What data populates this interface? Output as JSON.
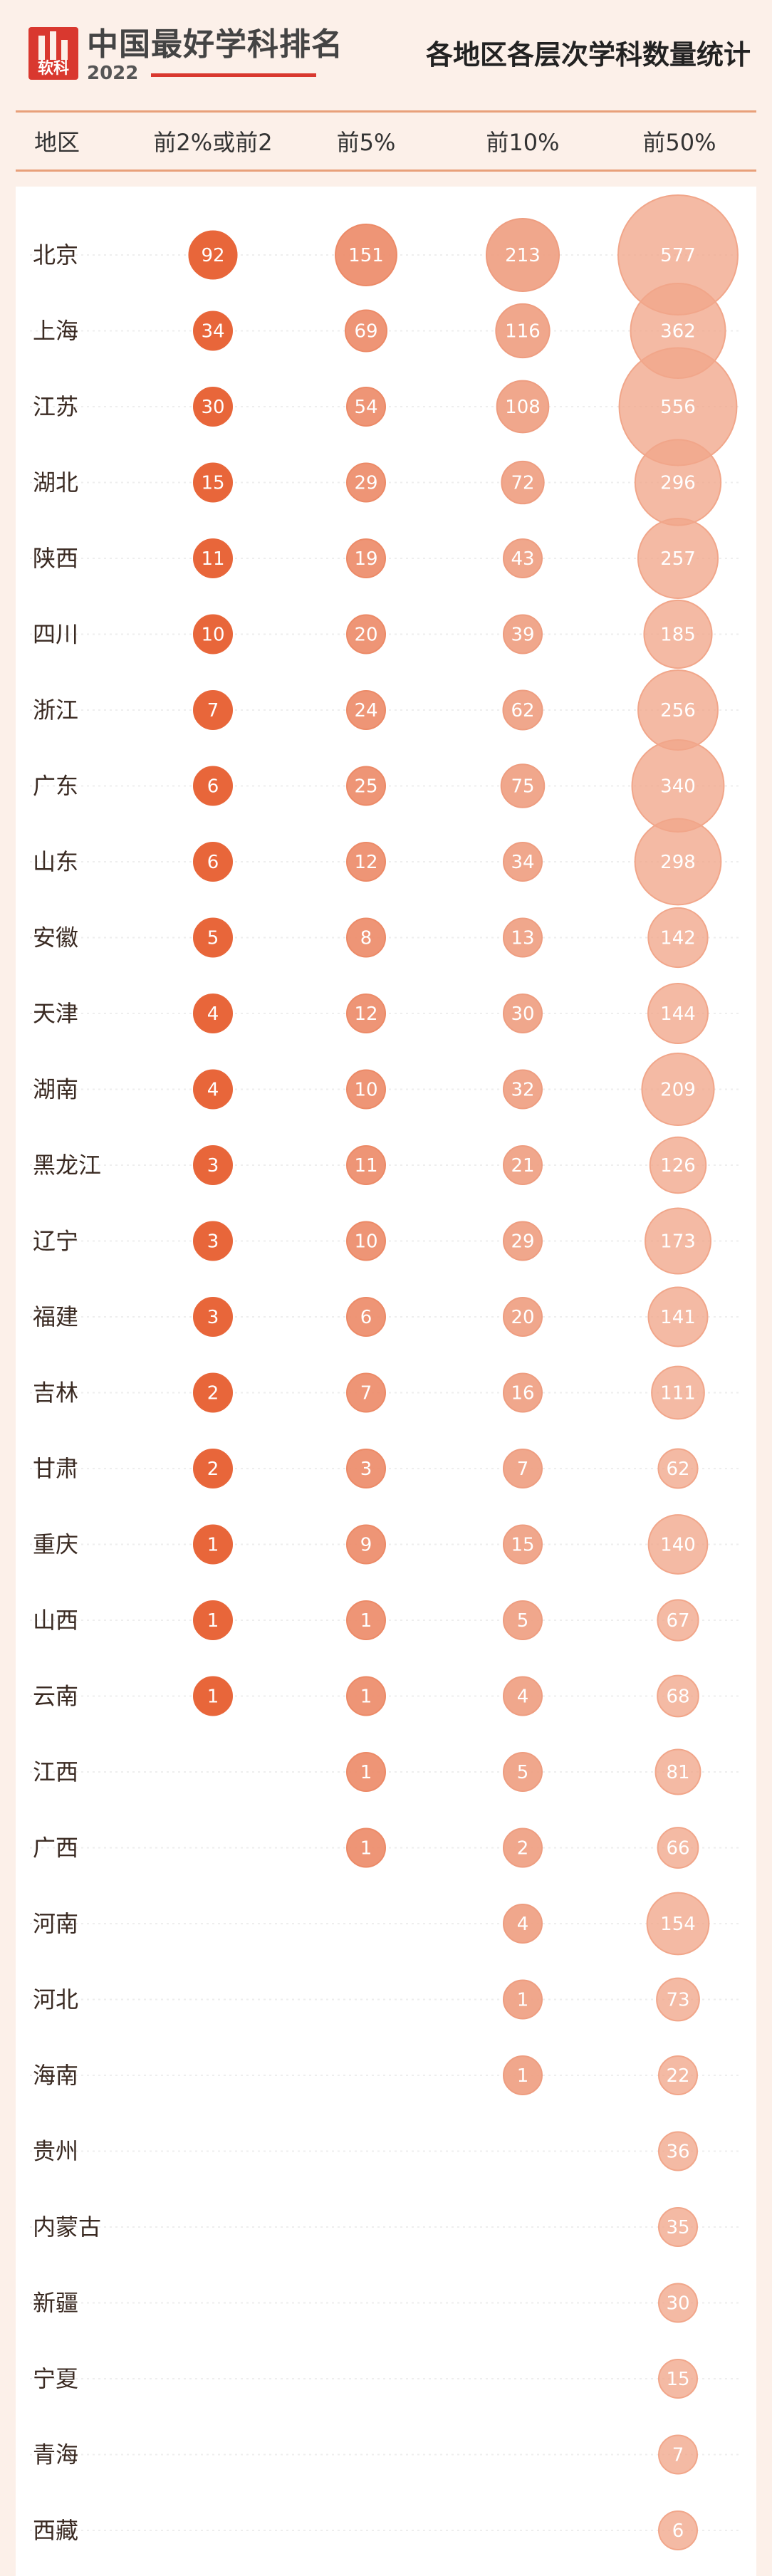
{
  "brand": {
    "title": "中国最好学科排名",
    "year": "2022",
    "logo_text": "软科"
  },
  "page_title": "各地区各层次学科数量统计",
  "chart_data": {
    "type": "bubble-table",
    "columns": [
      "地区",
      "前2%或前2",
      "前5%",
      "前10%",
      "前50%"
    ],
    "series_colors": [
      "#e8663a",
      "#ec8a67",
      "#ee9d80",
      "#f1a68a"
    ],
    "rows": [
      {
        "region": "北京",
        "values": [
          92,
          151,
          213,
          577
        ]
      },
      {
        "region": "上海",
        "values": [
          34,
          69,
          116,
          362
        ]
      },
      {
        "region": "江苏",
        "values": [
          30,
          54,
          108,
          556
        ]
      },
      {
        "region": "湖北",
        "values": [
          15,
          29,
          72,
          296
        ]
      },
      {
        "region": "陕西",
        "values": [
          11,
          19,
          43,
          257
        ]
      },
      {
        "region": "四川",
        "values": [
          10,
          20,
          39,
          185
        ]
      },
      {
        "region": "浙江",
        "values": [
          7,
          24,
          62,
          256
        ]
      },
      {
        "region": "广东",
        "values": [
          6,
          25,
          75,
          340
        ]
      },
      {
        "region": "山东",
        "values": [
          6,
          12,
          34,
          298
        ]
      },
      {
        "region": "安徽",
        "values": [
          5,
          8,
          13,
          142
        ]
      },
      {
        "region": "天津",
        "values": [
          4,
          12,
          30,
          144
        ]
      },
      {
        "region": "湖南",
        "values": [
          4,
          10,
          32,
          209
        ]
      },
      {
        "region": "黑龙江",
        "values": [
          3,
          11,
          21,
          126
        ]
      },
      {
        "region": "辽宁",
        "values": [
          3,
          10,
          29,
          173
        ]
      },
      {
        "region": "福建",
        "values": [
          3,
          6,
          20,
          141
        ]
      },
      {
        "region": "吉林",
        "values": [
          2,
          7,
          16,
          111
        ]
      },
      {
        "region": "甘肃",
        "values": [
          2,
          3,
          7,
          62
        ]
      },
      {
        "region": "重庆",
        "values": [
          1,
          9,
          15,
          140
        ]
      },
      {
        "region": "山西",
        "values": [
          1,
          1,
          5,
          67
        ]
      },
      {
        "region": "云南",
        "values": [
          1,
          1,
          4,
          68
        ]
      },
      {
        "region": "江西",
        "values": [
          null,
          1,
          5,
          81
        ]
      },
      {
        "region": "广西",
        "values": [
          null,
          1,
          2,
          66
        ]
      },
      {
        "region": "河南",
        "values": [
          null,
          null,
          4,
          154
        ]
      },
      {
        "region": "河北",
        "values": [
          null,
          null,
          1,
          73
        ]
      },
      {
        "region": "海南",
        "values": [
          null,
          null,
          1,
          22
        ]
      },
      {
        "region": "贵州",
        "values": [
          null,
          null,
          null,
          36
        ]
      },
      {
        "region": "内蒙古",
        "values": [
          null,
          null,
          null,
          35
        ]
      },
      {
        "region": "新疆",
        "values": [
          null,
          null,
          null,
          30
        ]
      },
      {
        "region": "宁夏",
        "values": [
          null,
          null,
          null,
          15
        ]
      },
      {
        "region": "青海",
        "values": [
          null,
          null,
          null,
          7
        ]
      },
      {
        "region": "西藏",
        "values": [
          null,
          null,
          null,
          6
        ]
      }
    ]
  }
}
